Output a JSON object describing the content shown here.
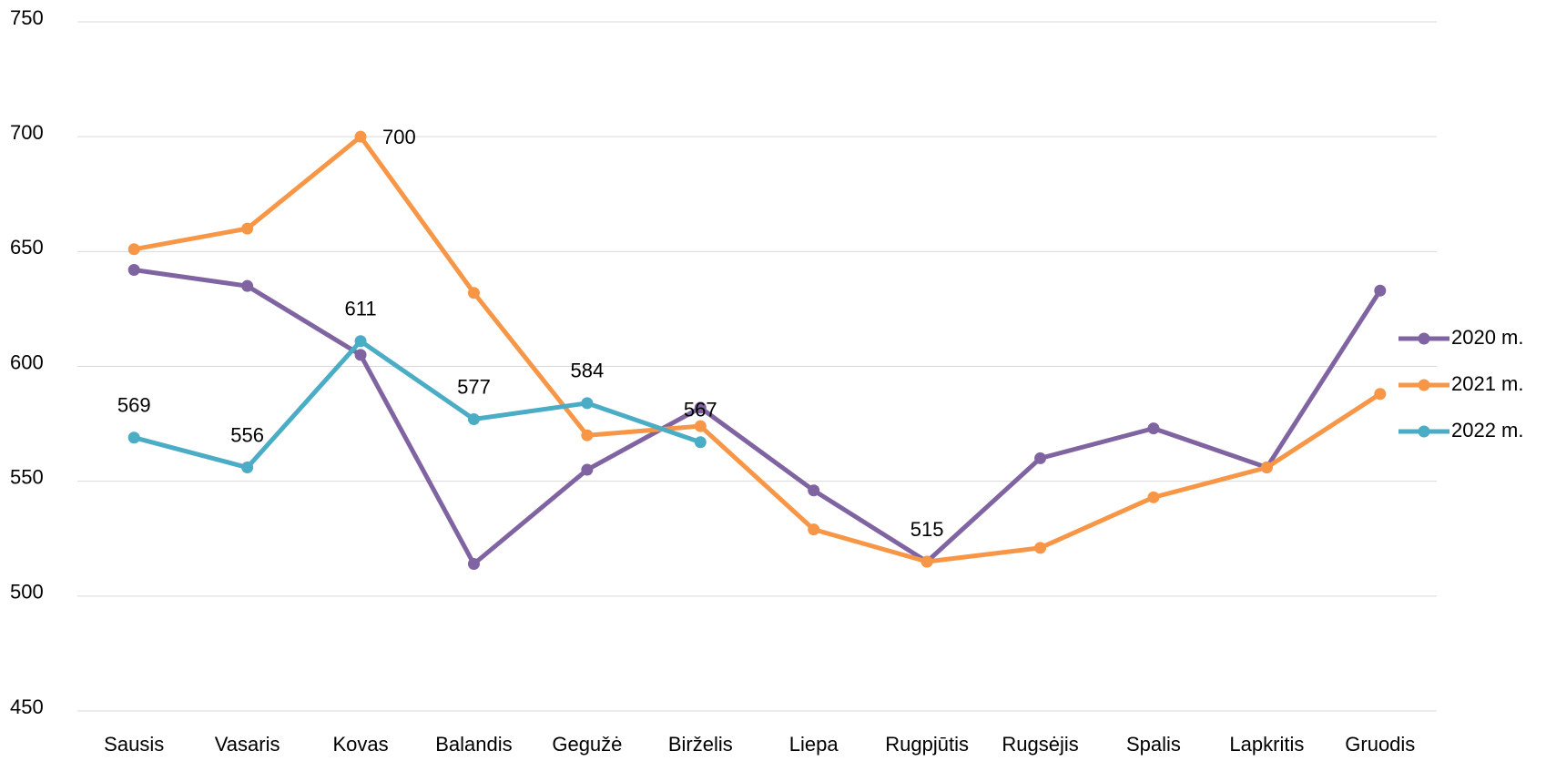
{
  "chart_data": {
    "type": "line",
    "categories": [
      "Sausis",
      "Vasaris",
      "Kovas",
      "Balandis",
      "Gegužė",
      "Birželis",
      "Liepa",
      "Rugpjūtis",
      "Rugsėjis",
      "Spalis",
      "Lapkritis",
      "Gruodis"
    ],
    "series": [
      {
        "name": "2020 m.",
        "color": "#8064a2",
        "values": [
          642,
          635,
          605,
          514,
          555,
          582,
          546,
          515,
          560,
          573,
          556,
          633
        ]
      },
      {
        "name": "2021 m.",
        "color": "#f79646",
        "values": [
          651,
          660,
          700,
          632,
          570,
          574,
          529,
          515,
          521,
          543,
          556,
          588
        ],
        "label_points": [
          2,
          7
        ]
      },
      {
        "name": "2022 m.",
        "color": "#4bacc6",
        "values": [
          569,
          556,
          611,
          577,
          584,
          567,
          null,
          null,
          null,
          null,
          null,
          null
        ],
        "label_points": [
          0,
          1,
          2,
          3,
          4,
          5
        ]
      }
    ],
    "ylim": [
      450,
      750
    ],
    "yticks": [
      450,
      500,
      550,
      600,
      650,
      700,
      750
    ],
    "grid": true,
    "legend": "right"
  }
}
